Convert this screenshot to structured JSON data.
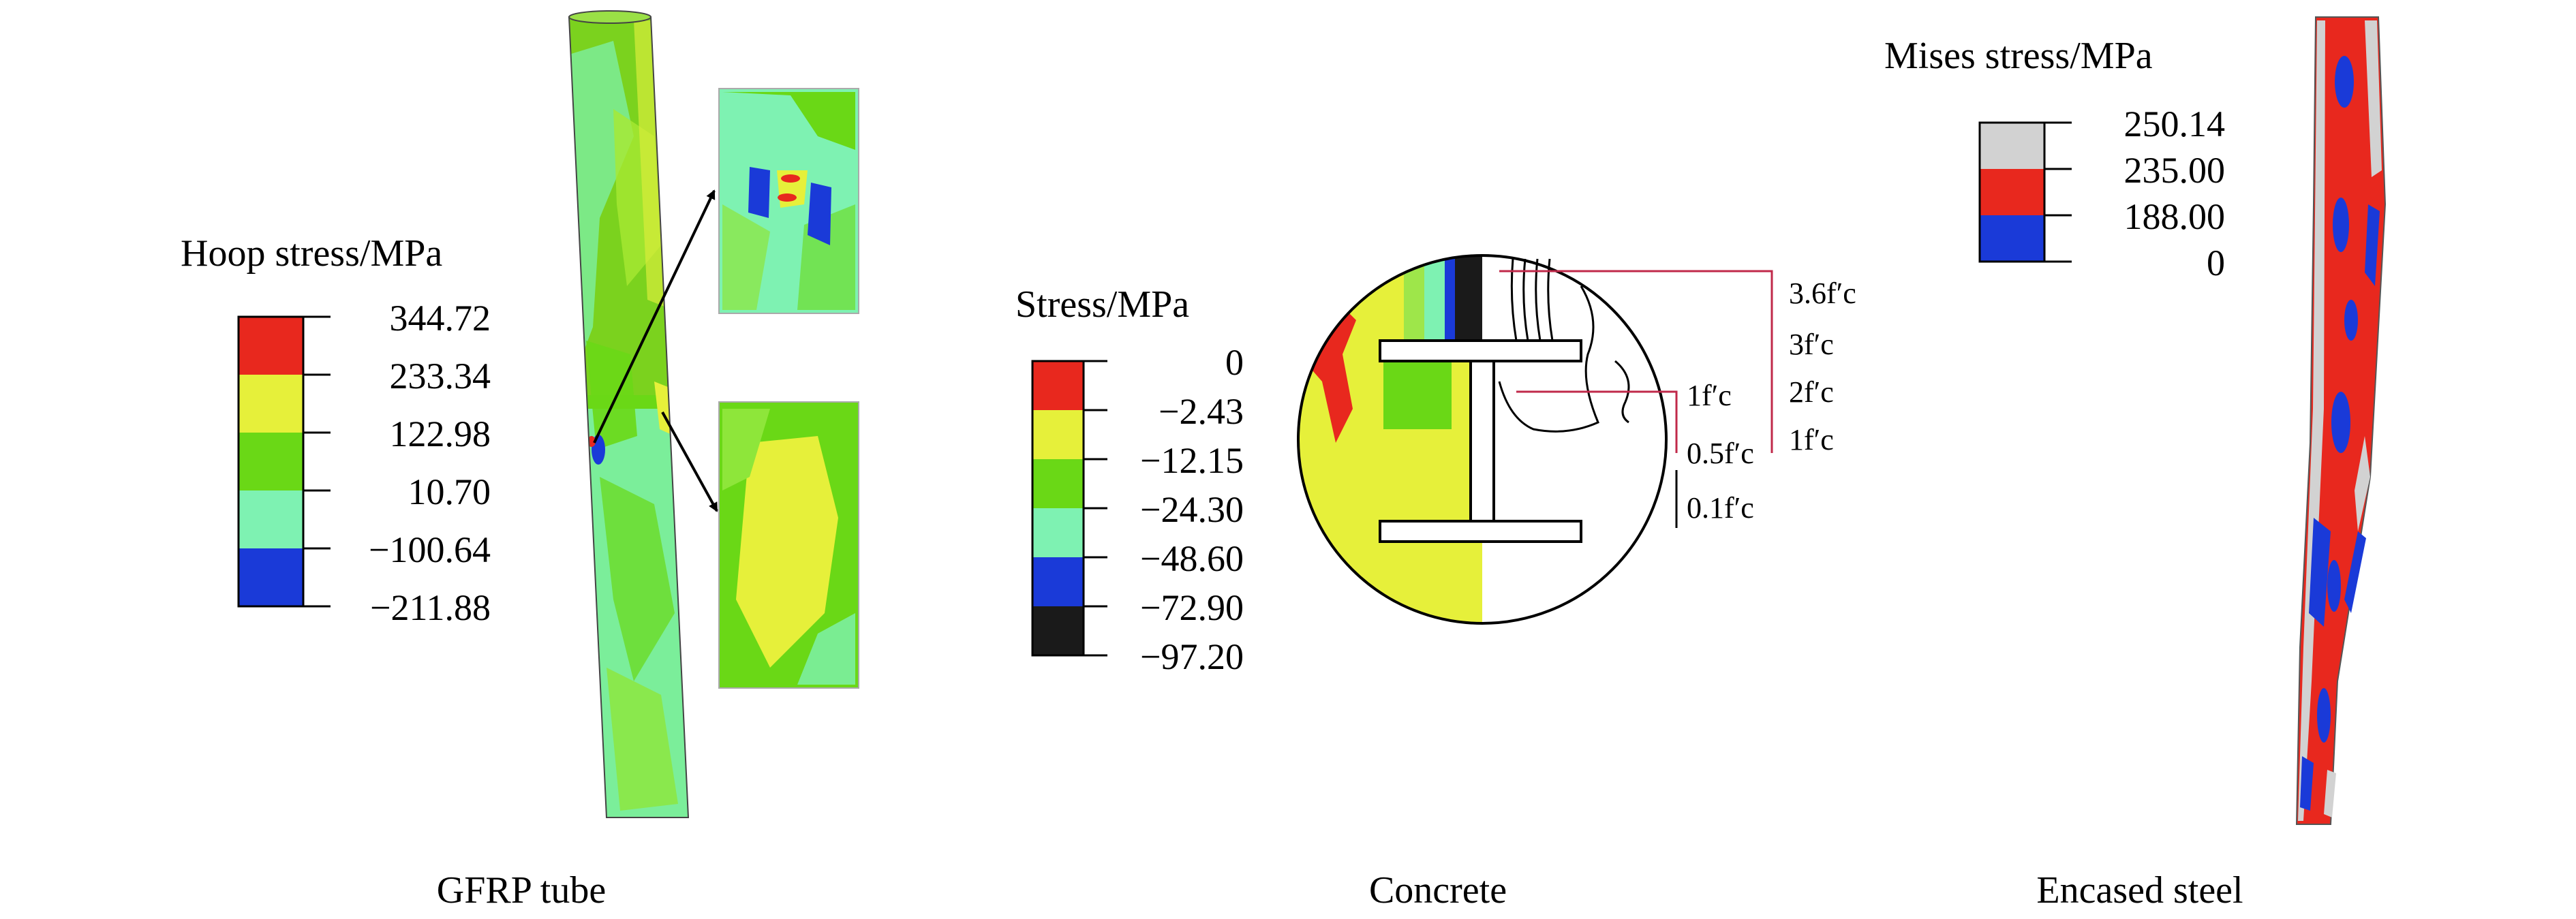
{
  "panels": {
    "gfrp": {
      "legend_title": "Hoop stress/MPa",
      "legend": [
        {
          "value": "344.72",
          "color": "#e8281e"
        },
        {
          "value": "233.34",
          "color": "#e6f03a"
        },
        {
          "value": "122.98",
          "color": "#6ad816"
        },
        {
          "value": "10.70",
          "color": "#7ef2b2"
        },
        {
          "value": "−100.64",
          "color": "#1a3ad8"
        },
        {
          "value": "−211.88",
          "color": ""
        }
      ],
      "caption": "GFRP tube"
    },
    "concrete": {
      "legend_title": "Stress/MPa",
      "legend": [
        {
          "value": "0",
          "color": "#e8281e"
        },
        {
          "value": "−2.43",
          "color": "#e6f03a"
        },
        {
          "value": "−12.15",
          "color": "#6ad816"
        },
        {
          "value": "−24.30",
          "color": "#7ef2b2"
        },
        {
          "value": "−48.60",
          "color": "#1a3ad8"
        },
        {
          "value": "−72.90",
          "color": "#1a1a1a"
        },
        {
          "value": "−97.20",
          "color": ""
        }
      ],
      "section_labels": {
        "left": [
          "1f′c",
          "0.5f′c",
          "0.1f′c"
        ],
        "right": [
          "3.6f′c",
          "3f′c",
          "2f′c",
          "1f′c"
        ]
      },
      "caption": "Concrete"
    },
    "steel": {
      "legend_title": "Mises stress/MPa",
      "legend": [
        {
          "value": "250.14",
          "color": "#d2d2d2"
        },
        {
          "value": "235.00",
          "color": "#e8281e"
        },
        {
          "value": "188.00",
          "color": "#1a3ad8"
        },
        {
          "value": "0",
          "color": ""
        }
      ],
      "caption": "Encased steel"
    }
  }
}
